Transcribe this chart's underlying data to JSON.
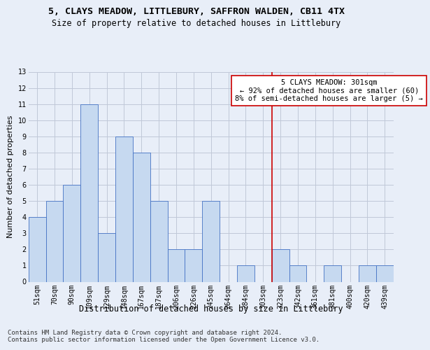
{
  "title1": "5, CLAYS MEADOW, LITTLEBURY, SAFFRON WALDEN, CB11 4TX",
  "title2": "Size of property relative to detached houses in Littlebury",
  "xlabel": "Distribution of detached houses by size in Littlebury",
  "ylabel": "Number of detached properties",
  "categories": [
    "51sqm",
    "70sqm",
    "90sqm",
    "109sqm",
    "129sqm",
    "148sqm",
    "167sqm",
    "187sqm",
    "206sqm",
    "226sqm",
    "245sqm",
    "264sqm",
    "284sqm",
    "303sqm",
    "323sqm",
    "342sqm",
    "361sqm",
    "381sqm",
    "400sqm",
    "420sqm",
    "439sqm"
  ],
  "values": [
    4,
    5,
    6,
    11,
    3,
    9,
    8,
    5,
    2,
    2,
    5,
    0,
    1,
    0,
    2,
    1,
    0,
    1,
    0,
    1,
    1
  ],
  "bar_color": "#c6d9f0",
  "bar_edge_color": "#4472c4",
  "grid_color": "#c0c8d8",
  "annotation_box_text": "5 CLAYS MEADOW: 301sqm\n← 92% of detached houses are smaller (60)\n8% of semi-detached houses are larger (5) →",
  "annotation_box_color": "#ffffff",
  "annotation_box_edge_color": "#cc0000",
  "vline_x": 13.5,
  "vline_color": "#cc0000",
  "ylim": [
    0,
    13
  ],
  "yticks": [
    0,
    1,
    2,
    3,
    4,
    5,
    6,
    7,
    8,
    9,
    10,
    11,
    12,
    13
  ],
  "footer_line1": "Contains HM Land Registry data © Crown copyright and database right 2024.",
  "footer_line2": "Contains public sector information licensed under the Open Government Licence v3.0.",
  "bg_color": "#e8eef8",
  "plot_bg_color": "#e8eef8",
  "title1_fontsize": 9.5,
  "title2_fontsize": 8.5,
  "xlabel_fontsize": 8.5,
  "ylabel_fontsize": 8,
  "tick_fontsize": 7,
  "annot_fontsize": 7.5,
  "footer_fontsize": 6.5
}
